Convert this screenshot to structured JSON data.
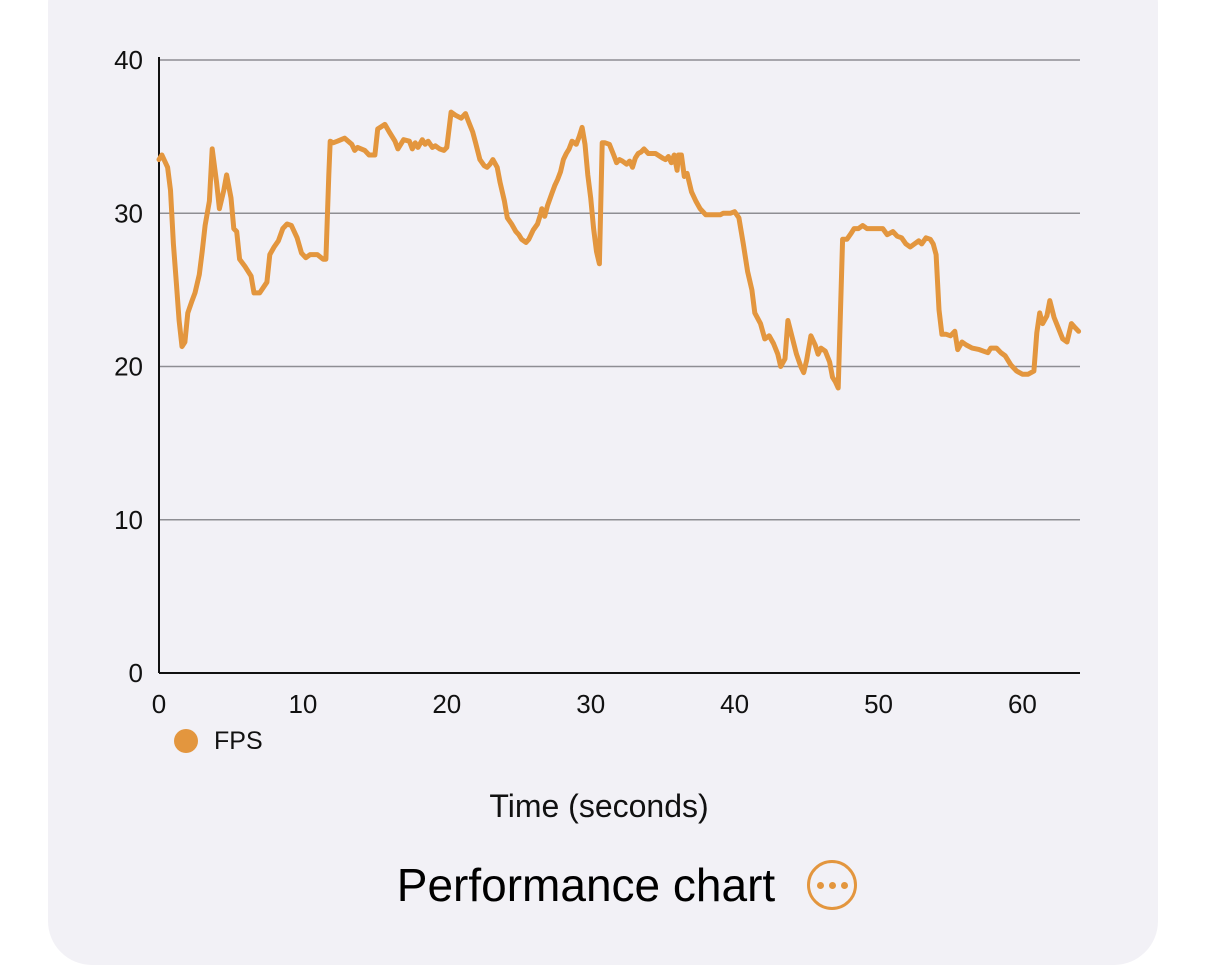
{
  "chart_data": {
    "type": "line",
    "title": "Performance chart",
    "xlabel": "Time (seconds)",
    "ylabel": "",
    "xlim": [
      0,
      64
    ],
    "ylim": [
      0,
      40
    ],
    "x_ticks": [
      0,
      10,
      20,
      30,
      40,
      50,
      60
    ],
    "y_ticks": [
      0,
      10,
      20,
      30,
      40
    ],
    "grid": "horizontal",
    "legend_position": "bottom-left",
    "series": [
      {
        "name": "FPS",
        "color": "#e3963e",
        "points": [
          [
            0.0,
            33.5
          ],
          [
            0.2,
            33.8
          ],
          [
            0.6,
            33.0
          ],
          [
            0.8,
            31.5
          ],
          [
            1.0,
            28.0
          ],
          [
            1.2,
            25.5
          ],
          [
            1.4,
            23.0
          ],
          [
            1.6,
            21.3
          ],
          [
            1.8,
            21.6
          ],
          [
            2.0,
            23.5
          ],
          [
            2.3,
            24.3
          ],
          [
            2.5,
            24.8
          ],
          [
            2.8,
            26.0
          ],
          [
            3.0,
            27.5
          ],
          [
            3.2,
            29.2
          ],
          [
            3.5,
            30.8
          ],
          [
            3.7,
            34.2
          ],
          [
            4.0,
            32.0
          ],
          [
            4.2,
            30.3
          ],
          [
            4.5,
            31.5
          ],
          [
            4.7,
            32.5
          ],
          [
            5.0,
            31.0
          ],
          [
            5.2,
            29.0
          ],
          [
            5.4,
            28.8
          ],
          [
            5.6,
            27.0
          ],
          [
            6.0,
            26.5
          ],
          [
            6.4,
            25.9
          ],
          [
            6.6,
            24.8
          ],
          [
            7.0,
            24.8
          ],
          [
            7.5,
            25.5
          ],
          [
            7.7,
            27.3
          ],
          [
            8.0,
            27.8
          ],
          [
            8.3,
            28.2
          ],
          [
            8.6,
            29.0
          ],
          [
            8.9,
            29.3
          ],
          [
            9.2,
            29.2
          ],
          [
            9.6,
            28.4
          ],
          [
            9.9,
            27.4
          ],
          [
            10.2,
            27.1
          ],
          [
            10.5,
            27.3
          ],
          [
            11.0,
            27.3
          ],
          [
            11.4,
            27.0
          ],
          [
            11.6,
            27.0
          ],
          [
            11.8,
            32.5
          ],
          [
            11.9,
            34.7
          ],
          [
            12.1,
            34.6
          ],
          [
            12.4,
            34.7
          ],
          [
            12.9,
            34.9
          ],
          [
            13.4,
            34.5
          ],
          [
            13.6,
            34.1
          ],
          [
            13.8,
            34.3
          ],
          [
            14.3,
            34.1
          ],
          [
            14.6,
            33.8
          ],
          [
            15.0,
            33.8
          ],
          [
            15.2,
            35.5
          ],
          [
            15.7,
            35.8
          ],
          [
            16.0,
            35.3
          ],
          [
            16.4,
            34.7
          ],
          [
            16.6,
            34.2
          ],
          [
            17.0,
            34.8
          ],
          [
            17.4,
            34.7
          ],
          [
            17.6,
            34.2
          ],
          [
            17.8,
            34.6
          ],
          [
            18.0,
            34.3
          ],
          [
            18.3,
            34.8
          ],
          [
            18.5,
            34.5
          ],
          [
            18.7,
            34.7
          ],
          [
            19.0,
            34.3
          ],
          [
            19.2,
            34.4
          ],
          [
            19.5,
            34.2
          ],
          [
            19.8,
            34.1
          ],
          [
            20.0,
            34.3
          ],
          [
            20.3,
            36.6
          ],
          [
            20.6,
            36.4
          ],
          [
            21.0,
            36.2
          ],
          [
            21.3,
            36.5
          ],
          [
            21.5,
            36.0
          ],
          [
            21.8,
            35.3
          ],
          [
            22.0,
            34.6
          ],
          [
            22.3,
            33.5
          ],
          [
            22.6,
            33.1
          ],
          [
            22.8,
            33.0
          ],
          [
            23.0,
            33.2
          ],
          [
            23.2,
            33.5
          ],
          [
            23.5,
            33.0
          ],
          [
            23.7,
            32.0
          ],
          [
            24.0,
            30.8
          ],
          [
            24.2,
            29.7
          ],
          [
            24.5,
            29.3
          ],
          [
            24.8,
            28.8
          ],
          [
            25.0,
            28.6
          ],
          [
            25.2,
            28.3
          ],
          [
            25.5,
            28.1
          ],
          [
            25.7,
            28.3
          ],
          [
            26.0,
            28.9
          ],
          [
            26.3,
            29.3
          ],
          [
            26.5,
            29.9
          ],
          [
            26.6,
            30.3
          ],
          [
            26.8,
            29.8
          ],
          [
            27.0,
            30.5
          ],
          [
            27.3,
            31.3
          ],
          [
            27.5,
            31.8
          ],
          [
            27.7,
            32.2
          ],
          [
            27.9,
            32.7
          ],
          [
            28.1,
            33.5
          ],
          [
            28.3,
            33.9
          ],
          [
            28.5,
            34.2
          ],
          [
            28.7,
            34.7
          ],
          [
            29.0,
            34.5
          ],
          [
            29.2,
            35.0
          ],
          [
            29.4,
            35.6
          ],
          [
            29.6,
            34.5
          ],
          [
            29.8,
            32.5
          ],
          [
            30.0,
            31.0
          ],
          [
            30.2,
            29.0
          ],
          [
            30.4,
            27.5
          ],
          [
            30.6,
            26.7
          ],
          [
            30.8,
            34.6
          ],
          [
            31.0,
            34.6
          ],
          [
            31.3,
            34.5
          ],
          [
            31.6,
            33.8
          ],
          [
            31.8,
            33.3
          ],
          [
            32.0,
            33.5
          ],
          [
            32.2,
            33.4
          ],
          [
            32.5,
            33.2
          ],
          [
            32.7,
            33.4
          ],
          [
            32.9,
            33.0
          ],
          [
            33.1,
            33.6
          ],
          [
            33.3,
            33.9
          ],
          [
            33.5,
            34.0
          ],
          [
            33.7,
            34.2
          ],
          [
            34.0,
            33.9
          ],
          [
            34.5,
            33.9
          ],
          [
            35.0,
            33.6
          ],
          [
            35.2,
            33.5
          ],
          [
            35.4,
            33.7
          ],
          [
            35.6,
            33.3
          ],
          [
            35.8,
            33.8
          ],
          [
            36.0,
            32.8
          ],
          [
            36.1,
            33.8
          ],
          [
            36.3,
            33.8
          ],
          [
            36.5,
            32.4
          ],
          [
            36.7,
            32.6
          ],
          [
            37.0,
            31.4
          ],
          [
            37.3,
            30.8
          ],
          [
            37.6,
            30.3
          ],
          [
            38.0,
            29.9
          ],
          [
            38.5,
            29.9
          ],
          [
            39.0,
            29.9
          ],
          [
            39.2,
            30.0
          ],
          [
            39.7,
            30.0
          ],
          [
            40.0,
            30.1
          ],
          [
            40.3,
            29.7
          ],
          [
            40.6,
            28.0
          ],
          [
            40.9,
            26.2
          ],
          [
            41.2,
            25.0
          ],
          [
            41.4,
            23.5
          ],
          [
            41.8,
            22.8
          ],
          [
            42.1,
            21.8
          ],
          [
            42.4,
            22.0
          ],
          [
            42.7,
            21.5
          ],
          [
            43.0,
            20.8
          ],
          [
            43.2,
            20.0
          ],
          [
            43.5,
            20.5
          ],
          [
            43.7,
            23.0
          ],
          [
            44.0,
            21.9
          ],
          [
            44.3,
            20.8
          ],
          [
            44.6,
            20.0
          ],
          [
            44.8,
            19.6
          ],
          [
            45.0,
            20.4
          ],
          [
            45.3,
            22.0
          ],
          [
            45.6,
            21.4
          ],
          [
            45.8,
            20.8
          ],
          [
            46.0,
            21.2
          ],
          [
            46.3,
            21.0
          ],
          [
            46.6,
            20.3
          ],
          [
            46.8,
            19.3
          ],
          [
            47.0,
            19.0
          ],
          [
            47.2,
            18.6
          ],
          [
            47.5,
            28.3
          ],
          [
            47.8,
            28.3
          ],
          [
            48.1,
            28.7
          ],
          [
            48.3,
            29.0
          ],
          [
            48.6,
            29.0
          ],
          [
            48.9,
            29.2
          ],
          [
            49.2,
            29.0
          ],
          [
            49.6,
            29.0
          ],
          [
            50.0,
            29.0
          ],
          [
            50.3,
            29.0
          ],
          [
            50.6,
            28.6
          ],
          [
            51.0,
            28.8
          ],
          [
            51.3,
            28.5
          ],
          [
            51.6,
            28.4
          ],
          [
            51.9,
            28.0
          ],
          [
            52.2,
            27.8
          ],
          [
            52.5,
            28.0
          ],
          [
            52.8,
            28.2
          ],
          [
            53.0,
            28.0
          ],
          [
            53.3,
            28.4
          ],
          [
            53.6,
            28.3
          ],
          [
            53.8,
            28.0
          ],
          [
            54.0,
            27.3
          ],
          [
            54.2,
            23.7
          ],
          [
            54.4,
            22.1
          ],
          [
            54.7,
            22.1
          ],
          [
            55.0,
            22.0
          ],
          [
            55.3,
            22.3
          ],
          [
            55.5,
            21.1
          ],
          [
            55.8,
            21.6
          ],
          [
            56.1,
            21.4
          ],
          [
            56.5,
            21.2
          ],
          [
            57.0,
            21.1
          ],
          [
            57.3,
            21.0
          ],
          [
            57.6,
            20.9
          ],
          [
            57.8,
            21.2
          ],
          [
            58.2,
            21.2
          ],
          [
            58.5,
            20.9
          ],
          [
            58.8,
            20.7
          ],
          [
            59.2,
            20.1
          ],
          [
            59.6,
            19.7
          ],
          [
            60.0,
            19.5
          ],
          [
            60.4,
            19.5
          ],
          [
            60.8,
            19.7
          ],
          [
            61.0,
            22.2
          ],
          [
            61.2,
            23.5
          ],
          [
            61.4,
            22.8
          ],
          [
            61.7,
            23.3
          ],
          [
            61.9,
            24.3
          ],
          [
            62.2,
            23.2
          ],
          [
            62.5,
            22.5
          ],
          [
            62.8,
            21.8
          ],
          [
            63.1,
            21.6
          ],
          [
            63.4,
            22.8
          ],
          [
            63.6,
            22.6
          ],
          [
            63.9,
            22.3
          ],
          [
            64.1,
            22.0
          ]
        ]
      }
    ]
  },
  "legend": {
    "items": [
      {
        "label": "FPS",
        "color": "#e3963e"
      }
    ]
  },
  "footer": {
    "title": "Performance chart",
    "more_button": "ellipsis-circle-icon"
  },
  "colors": {
    "accent": "#e3963e",
    "card_background": "#f2f1f6",
    "gridline": "#8e8e93"
  }
}
